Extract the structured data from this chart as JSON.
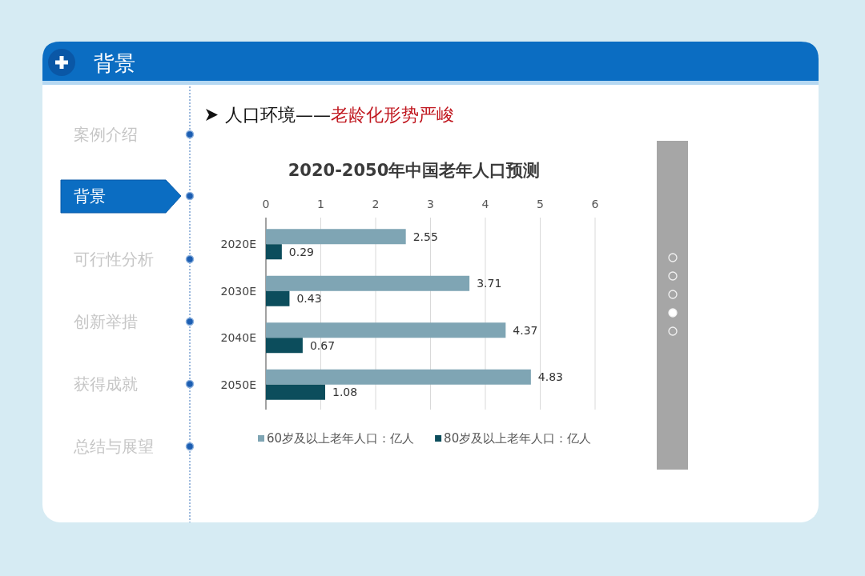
{
  "chart_data": {
    "type": "bar",
    "orientation": "horizontal",
    "title": "2020-2050年中国老年人口预测",
    "categories": [
      "2020E",
      "2030E",
      "2040E",
      "2050E"
    ],
    "series": [
      {
        "name": "60岁及以上老年人口：亿人",
        "color": "#7fa5b4",
        "values": [
          2.55,
          3.71,
          4.37,
          4.83
        ]
      },
      {
        "name": "80岁及以上老年人口：亿人",
        "color": "#0c4d5c",
        "values": [
          0.29,
          0.43,
          0.67,
          1.08
        ]
      }
    ],
    "xlim": [
      0,
      6
    ],
    "xticks": [
      0,
      1,
      2,
      3,
      4,
      5,
      6
    ],
    "grid": "x",
    "legend": "bottom",
    "data_labels": true,
    "annotations": [
      "背景",
      "案例介绍",
      "背景",
      "可行性分析",
      "创新举措",
      "获得成就",
      "总结与展望",
      "人口环境——",
      "老龄化形势严峻"
    ]
  }
}
